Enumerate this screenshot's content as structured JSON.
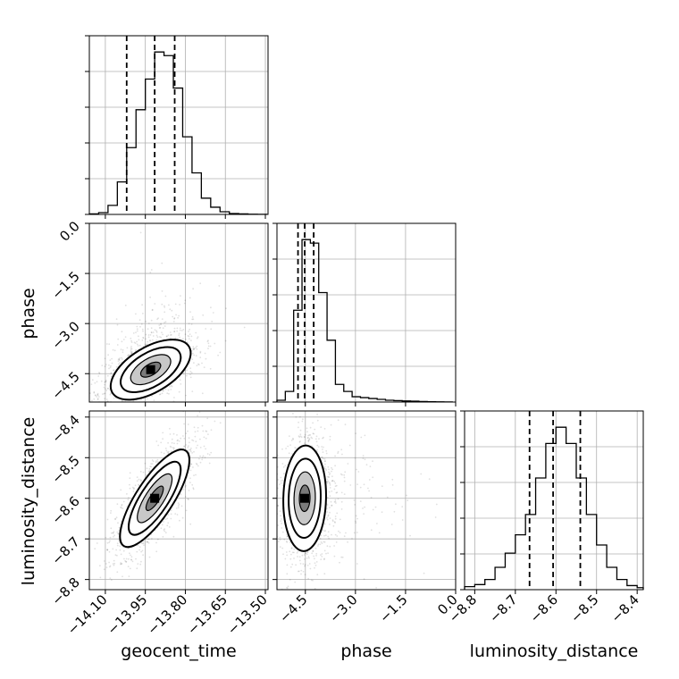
{
  "chart_data": {
    "type": "corner",
    "parameters": [
      "geocent_time",
      "phase",
      "luminosity_distance"
    ],
    "axis_labels": {
      "geocent_time": "geocent_time",
      "phase": "phase",
      "luminosity_distance": "luminosity_distance"
    },
    "ranges": {
      "geocent_time": [
        -14.16,
        -13.49
      ],
      "phase": [
        -5.35,
        0.0
      ],
      "luminosity_distance": [
        -8.825,
        -8.385
      ]
    },
    "ticks": {
      "geocent_time": {
        "values": [
          -14.1,
          -13.95,
          -13.8,
          -13.65,
          -13.5
        ],
        "labels": [
          "−14.10",
          "−13.95",
          "−13.80",
          "−13.65",
          "−13.50"
        ]
      },
      "phase": {
        "values": [
          -4.5,
          -3.0,
          -1.5,
          0.0
        ],
        "labels": [
          "−4.5",
          "−3.0",
          "−1.5",
          "0.0"
        ]
      },
      "luminosity_distance": {
        "values": [
          -8.8,
          -8.7,
          -8.6,
          -8.5,
          -8.4
        ],
        "labels": [
          "−8.8",
          "−8.7",
          "−8.6",
          "−8.5",
          "−8.4"
        ]
      }
    },
    "histograms": {
      "geocent_time": {
        "edges": [
          -14.16,
          -14.125,
          -14.09,
          -14.055,
          -14.02,
          -13.985,
          -13.95,
          -13.915,
          -13.88,
          -13.845,
          -13.81,
          -13.775,
          -13.74,
          -13.705,
          -13.67,
          -13.635,
          -13.6,
          -13.565,
          -13.53,
          -13.495
        ],
        "counts": [
          0.3,
          1.0,
          5,
          18,
          37,
          58,
          75,
          90,
          88,
          70,
          43,
          23,
          9,
          4,
          1.5,
          0.5,
          0.3,
          0.1,
          0.05
        ],
        "quantiles": [
          -14.02,
          -13.915,
          -13.84
        ]
      },
      "phase": {
        "edges": [
          -5.35,
          -5.1,
          -4.85,
          -4.6,
          -4.35,
          -4.1,
          -3.85,
          -3.6,
          -3.35,
          -3.1,
          -2.85,
          -2.6,
          -2.35,
          -2.1,
          -1.85,
          -1.6,
          -1.35,
          -1.1,
          -0.85,
          -0.6,
          -0.35,
          -0.1
        ],
        "counts": [
          1,
          6,
          52,
          92,
          90,
          62,
          35,
          10,
          6,
          3,
          2.5,
          2,
          1.5,
          1,
          0.8,
          0.6,
          0.5,
          0.3,
          0.15,
          0.1,
          0.05
        ],
        "quantiles": [
          -4.72,
          -4.52,
          -4.25
        ]
      },
      "luminosity_distance": {
        "edges": [
          -8.825,
          -8.8,
          -8.775,
          -8.75,
          -8.725,
          -8.7,
          -8.675,
          -8.65,
          -8.625,
          -8.6,
          -8.575,
          -8.55,
          -8.525,
          -8.5,
          -8.475,
          -8.45,
          -8.425,
          -8.4,
          -8.385
        ],
        "counts": [
          1.5,
          2.5,
          5,
          11,
          18,
          27,
          37,
          55,
          72,
          80,
          72,
          55,
          37,
          22,
          11,
          5,
          2,
          1
        ],
        "quantiles": [
          -8.665,
          -8.607,
          -8.54
        ]
      }
    },
    "joint": [
      {
        "x": "geocent_time",
        "y": "phase",
        "mean": [
          -13.93,
          -4.38
        ],
        "sd": [
          0.075,
          0.45
        ],
        "corr": 0.55
      },
      {
        "x": "geocent_time",
        "y": "luminosity_distance",
        "mean": [
          -13.915,
          -8.6
        ],
        "sd": [
          0.065,
          0.06
        ],
        "corr": 0.78
      },
      {
        "x": "phase",
        "y": "luminosity_distance",
        "mean": [
          -4.52,
          -8.6
        ],
        "sd": [
          0.32,
          0.065
        ],
        "corr": 0.05
      }
    ],
    "contour_levels_sigma": [
      0.5,
      1.0,
      1.5,
      2.0
    ],
    "grid": true,
    "quantile_line_style": "dashed"
  }
}
